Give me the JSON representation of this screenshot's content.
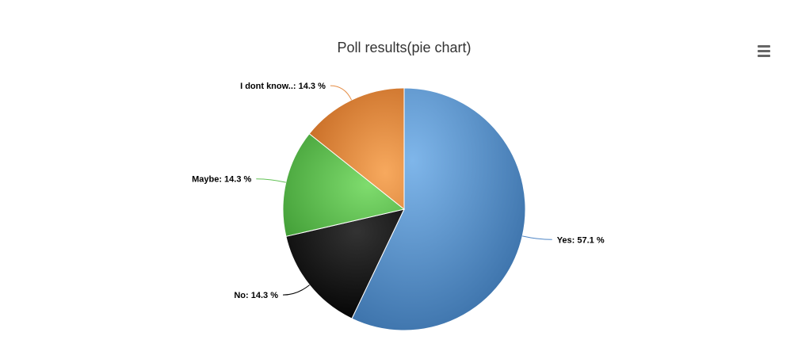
{
  "chart_data": {
    "type": "pie",
    "title": "Poll results(pie chart)",
    "slices": [
      {
        "name": "Yes",
        "value": 57.1,
        "label": "Yes: 57.1 %",
        "color": "#4f86c6"
      },
      {
        "name": "No",
        "value": 14.3,
        "label": "No: 14.3 %",
        "color": "#202020"
      },
      {
        "name": "Maybe",
        "value": 14.3,
        "label": "Maybe: 14.3 %",
        "color": "#62c255"
      },
      {
        "name": "I dont know..",
        "value": 14.3,
        "label": "I dont know..: 14.3 %",
        "color": "#e58d45"
      }
    ]
  },
  "menu": {
    "icon": "hamburger-menu-icon"
  }
}
